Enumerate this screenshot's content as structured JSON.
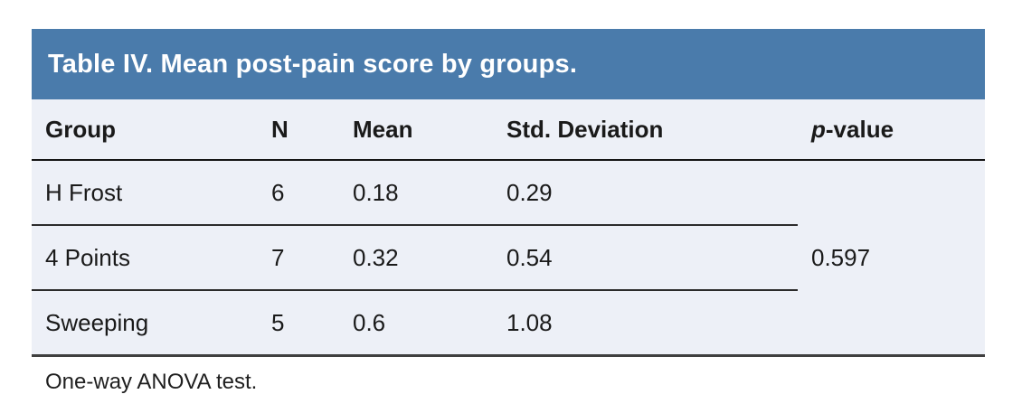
{
  "table": {
    "title": "Table IV. Mean post-pain score by groups.",
    "columns": [
      {
        "label": "Group"
      },
      {
        "label": "N"
      },
      {
        "label": "Mean"
      },
      {
        "label": "Std. Deviation"
      },
      {
        "label_italic": "p",
        "label_rest": "-value"
      }
    ],
    "rows": [
      [
        "H Frost",
        "6",
        "0.18",
        "0.29"
      ],
      [
        "4 Points",
        "7",
        "0.32",
        "0.54"
      ],
      [
        "Sweeping",
        "5",
        "0.6",
        "1.08"
      ]
    ],
    "p_value": "0.597",
    "footnote": "One-way ANOVA test.",
    "colors": {
      "title_band": "#4A7BAB",
      "body_background": "#EDF0F7",
      "title_text": "#FFFFFF",
      "rule_line": "#2B2B2B"
    }
  }
}
